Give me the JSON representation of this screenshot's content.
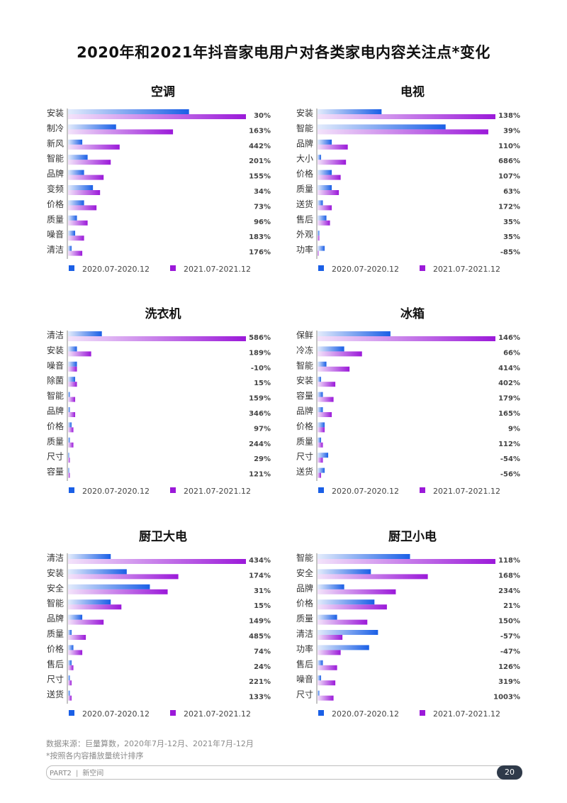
{
  "title": "2020年和2021年抖音家电用户对各类家电内容关注点*变化",
  "colors": {
    "series2020": "#1a5fe6",
    "series2021": "#9b19d9"
  },
  "chart_data": [
    {
      "type": "bar",
      "title": "空调",
      "categories": [
        "安装",
        "制冷",
        "新风",
        "智能",
        "品牌",
        "变频",
        "价格",
        "质量",
        "噪音",
        "清洁"
      ],
      "series": [
        {
          "name": "2020.07-2020.12",
          "values": [
            68,
            27,
            8,
            11,
            9,
            14,
            9,
            5,
            4,
            2
          ]
        },
        {
          "name": "2021.07-2021.12",
          "values": [
            100,
            59,
            29,
            24,
            20,
            18,
            16,
            11,
            9,
            8
          ]
        }
      ],
      "changes": [
        "30%",
        "163%",
        "442%",
        "201%",
        "155%",
        "34%",
        "73%",
        "96%",
        "183%",
        "176%"
      ],
      "xlim": [
        0,
        100
      ]
    },
    {
      "type": "bar",
      "title": "电视",
      "categories": [
        "安装",
        "智能",
        "品牌",
        "大小",
        "价格",
        "质量",
        "送货",
        "售后",
        "外观",
        "功率"
      ],
      "series": [
        {
          "name": "2020.07-2020.12",
          "values": [
            36,
            72,
            8,
            2,
            8,
            8,
            3,
            5,
            1,
            4
          ]
        },
        {
          "name": "2021.07-2021.12",
          "values": [
            100,
            96,
            17,
            16,
            13,
            12,
            8,
            7,
            1,
            0
          ]
        }
      ],
      "changes": [
        "138%",
        "39%",
        "110%",
        "686%",
        "107%",
        "63%",
        "172%",
        "35%",
        "35%",
        "-85%"
      ],
      "xlim": [
        0,
        100
      ]
    },
    {
      "type": "bar",
      "title": "洗衣机",
      "categories": [
        "清洁",
        "安装",
        "噪音",
        "除菌",
        "智能",
        "品牌",
        "价格",
        "质量",
        "尺寸",
        "容量"
      ],
      "series": [
        {
          "name": "2020.07-2020.12",
          "values": [
            19,
            5,
            5,
            4,
            1,
            1,
            2,
            1,
            0.5,
            0.5
          ]
        },
        {
          "name": "2021.07-2021.12",
          "values": [
            100,
            13,
            5,
            5,
            4,
            4,
            3,
            3,
            1,
            1
          ]
        }
      ],
      "changes": [
        "586%",
        "189%",
        "-10%",
        "15%",
        "159%",
        "346%",
        "97%",
        "244%",
        "29%",
        "121%"
      ],
      "xlim": [
        0,
        100
      ]
    },
    {
      "type": "bar",
      "title": "冰箱",
      "categories": [
        "保鲜",
        "冷冻",
        "智能",
        "安装",
        "容量",
        "品牌",
        "价格",
        "质量",
        "尺寸",
        "送货"
      ],
      "series": [
        {
          "name": "2020.07-2020.12",
          "values": [
            41,
            15,
            5,
            2,
            3,
            3,
            4,
            2,
            6,
            4
          ]
        },
        {
          "name": "2021.07-2021.12",
          "values": [
            100,
            25,
            18,
            10,
            9,
            8,
            4,
            3,
            3,
            2
          ]
        }
      ],
      "changes": [
        "146%",
        "66%",
        "414%",
        "402%",
        "179%",
        "165%",
        "9%",
        "112%",
        "-54%",
        "-56%"
      ],
      "xlim": [
        0,
        100
      ]
    },
    {
      "type": "bar",
      "title": "厨卫大电",
      "categories": [
        "清洁",
        "安装",
        "安全",
        "智能",
        "品牌",
        "质量",
        "价格",
        "售后",
        "尺寸",
        "送货"
      ],
      "series": [
        {
          "name": "2020.07-2020.12",
          "values": [
            24,
            33,
            46,
            24,
            8,
            2,
            3,
            2,
            1,
            1
          ]
        },
        {
          "name": "2021.07-2021.12",
          "values": [
            100,
            62,
            56,
            30,
            20,
            10,
            8,
            3,
            2,
            2
          ]
        }
      ],
      "changes": [
        "434%",
        "174%",
        "31%",
        "15%",
        "149%",
        "485%",
        "74%",
        "24%",
        "221%",
        "133%"
      ],
      "xlim": [
        0,
        100
      ]
    },
    {
      "type": "bar",
      "title": "厨卫小电",
      "categories": [
        "智能",
        "安全",
        "品牌",
        "价格",
        "质量",
        "清洁",
        "功率",
        "售后",
        "噪音",
        "尺寸"
      ],
      "series": [
        {
          "name": "2020.07-2020.12",
          "values": [
            52,
            30,
            15,
            32,
            11,
            34,
            29,
            3,
            2,
            1
          ]
        },
        {
          "name": "2021.07-2021.12",
          "values": [
            100,
            62,
            44,
            39,
            28,
            14,
            13,
            11,
            10,
            9
          ]
        }
      ],
      "changes": [
        "118%",
        "168%",
        "234%",
        "21%",
        "150%",
        "-57%",
        "-47%",
        "126%",
        "319%",
        "1003%"
      ],
      "xlim": [
        0,
        100
      ]
    }
  ],
  "source_note": "数据来源：巨量算数，2020年7月-12月、2021年7月-12月",
  "footnote": "*按照各内容播放量统计排序",
  "footer": {
    "part": "PART2",
    "section": "新空间",
    "page": "20"
  }
}
